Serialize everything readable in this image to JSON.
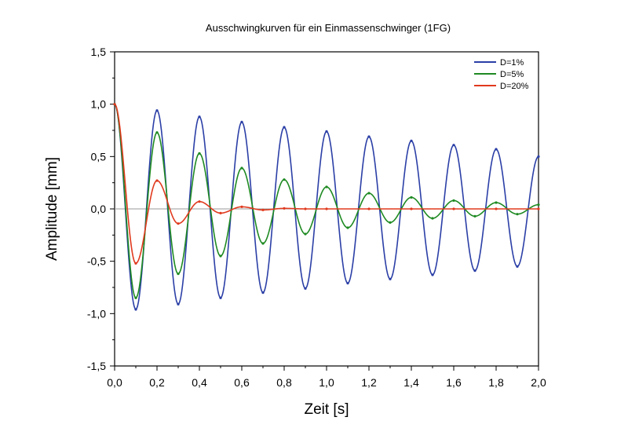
{
  "chart_data": {
    "type": "line",
    "title": "Ausschwingkurven für ein Einmassenschwinger (1FG)",
    "xlabel": "Zeit [s]",
    "ylabel": "Amplitude [mm]",
    "xlim": [
      0,
      2
    ],
    "ylim": [
      -1.5,
      1.5
    ],
    "x_ticks": [
      "0,0",
      "0,2",
      "0,4",
      "0,6",
      "0,8",
      "1,0",
      "1,2",
      "1,4",
      "1,6",
      "1,8",
      "2,0"
    ],
    "y_ticks": [
      "1,5",
      "1,0",
      "0,5",
      "0,0",
      "-0,5",
      "-1,0",
      "-1,5"
    ],
    "grid": false,
    "legend_position": "top-right",
    "series": [
      {
        "name": "D=1%",
        "color": "#2b3fa6",
        "x": [
          0,
          0.1,
          0.2,
          0.3,
          0.4,
          0.5,
          0.6,
          0.7,
          0.8,
          0.9,
          1.0,
          1.1,
          1.2,
          1.3,
          1.4,
          1.5,
          1.6,
          1.7,
          1.8,
          1.9,
          2.0
        ],
        "y": [
          1.0,
          -0.96,
          0.94,
          -0.91,
          0.88,
          -0.85,
          0.83,
          -0.8,
          0.78,
          -0.76,
          0.74,
          -0.71,
          0.69,
          -0.67,
          0.65,
          -0.63,
          0.61,
          -0.59,
          0.57,
          -0.55,
          0.5
        ]
      },
      {
        "name": "D=5%",
        "color": "#1e8a22",
        "x": [
          0,
          0.1,
          0.2,
          0.3,
          0.4,
          0.5,
          0.6,
          0.7,
          0.8,
          0.9,
          1.0,
          1.1,
          1.2,
          1.3,
          1.4,
          1.5,
          1.6,
          1.7,
          1.8,
          1.9,
          2.0
        ],
        "y": [
          1.0,
          -0.85,
          0.73,
          -0.62,
          0.53,
          -0.45,
          0.39,
          -0.33,
          0.28,
          -0.24,
          0.21,
          -0.18,
          0.15,
          -0.13,
          0.11,
          -0.09,
          0.08,
          -0.07,
          0.06,
          -0.05,
          0.04
        ]
      },
      {
        "name": "D=20%",
        "color": "#e03a1e",
        "x": [
          0,
          0.1,
          0.2,
          0.3,
          0.4,
          0.5,
          0.6,
          0.7,
          0.8,
          0.9,
          1.0,
          1.2,
          1.4,
          1.6,
          1.8,
          2.0
        ],
        "y": [
          1.0,
          -0.52,
          0.27,
          -0.14,
          0.07,
          -0.04,
          0.02,
          -0.01,
          0.005,
          0,
          0,
          0,
          0,
          0,
          0,
          0
        ]
      }
    ]
  }
}
